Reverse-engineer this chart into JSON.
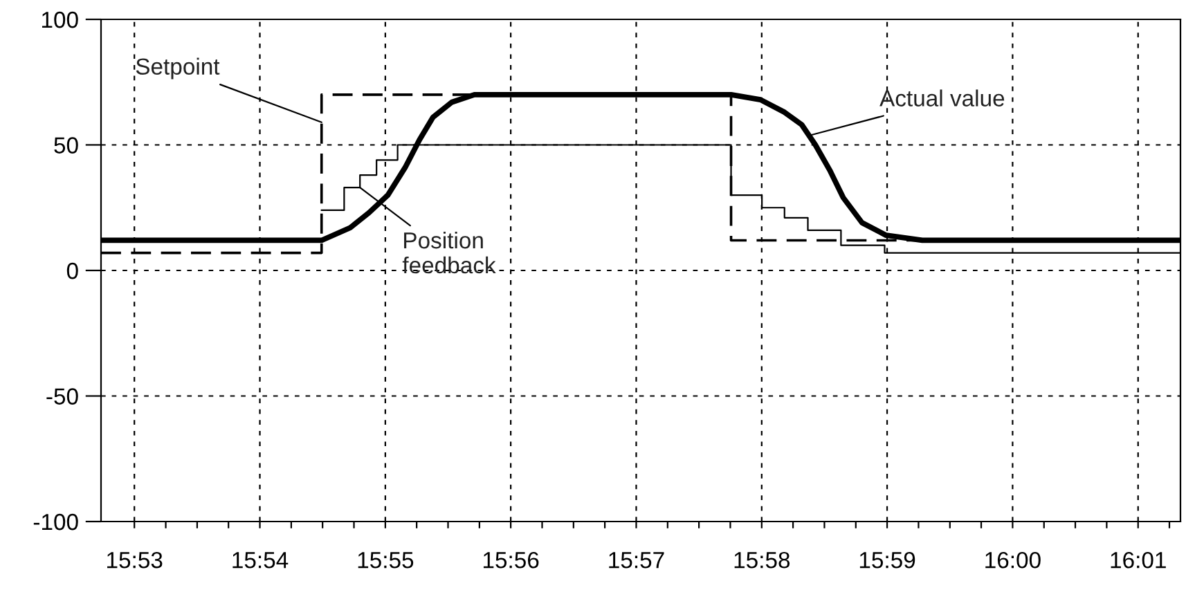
{
  "chart_data": {
    "type": "line",
    "grid": true,
    "legend": false,
    "marker": "none",
    "xlim": [
      15.8789,
      16.0223
    ],
    "ylim": [
      -100,
      100
    ],
    "yticks": [
      -100,
      -50,
      0,
      50,
      100
    ],
    "xticks": [
      {
        "value": 15.88333,
        "label": "15:53"
      },
      {
        "value": 15.8875,
        "label": null
      },
      {
        "value": 15.89167,
        "label": null
      },
      {
        "value": 15.89583,
        "label": null
      },
      {
        "value": 15.9,
        "label": "15:54"
      },
      {
        "value": 15.90417,
        "label": null
      },
      {
        "value": 15.90833,
        "label": null
      },
      {
        "value": 15.9125,
        "label": null
      },
      {
        "value": 15.91667,
        "label": "15:55"
      },
      {
        "value": 15.92083,
        "label": null
      },
      {
        "value": 15.925,
        "label": null
      },
      {
        "value": 15.92917,
        "label": null
      },
      {
        "value": 15.93333,
        "label": "15:56"
      },
      {
        "value": 15.9375,
        "label": null
      },
      {
        "value": 15.94167,
        "label": null
      },
      {
        "value": 15.94583,
        "label": null
      },
      {
        "value": 15.95,
        "label": "15:57"
      },
      {
        "value": 15.95417,
        "label": null
      },
      {
        "value": 15.95833,
        "label": null
      },
      {
        "value": 15.9625,
        "label": null
      },
      {
        "value": 15.96667,
        "label": "15:58"
      },
      {
        "value": 15.97083,
        "label": null
      },
      {
        "value": 15.975,
        "label": null
      },
      {
        "value": 15.97917,
        "label": null
      },
      {
        "value": 15.98333,
        "label": "15:59"
      },
      {
        "value": 15.9875,
        "label": null
      },
      {
        "value": 15.99167,
        "label": null
      },
      {
        "value": 15.99583,
        "label": null
      },
      {
        "value": 16.0,
        "label": "16:00"
      },
      {
        "value": 16.00417,
        "label": null
      },
      {
        "value": 16.00833,
        "label": null
      },
      {
        "value": 16.0125,
        "label": null
      },
      {
        "value": 16.01667,
        "label": "16:01"
      },
      {
        "value": 16.02083,
        "label": null
      }
    ],
    "series": [
      {
        "type": "step",
        "color": "#000000",
        "line_style": "dashed",
        "x": [
          15.8789,
          15.9082,
          15.9626,
          16.0223
        ],
        "values": [
          7,
          70,
          12,
          12
        ]
      },
      {
        "type": "step",
        "color": "#000000",
        "line_style": "solid",
        "x": [
          15.9082,
          15.9112,
          15.9133,
          15.9155,
          15.9183,
          15.9626,
          15.9667,
          15.9697,
          15.9728,
          15.9772,
          15.983,
          16.0223
        ],
        "values": [
          24,
          33,
          38,
          44,
          50,
          30,
          25,
          21,
          16,
          10,
          7,
          7
        ]
      },
      {
        "color": "#000000",
        "line_style": "solid",
        "x": [
          15.8789,
          15.9082,
          15.912,
          15.9145,
          15.917,
          15.9193,
          15.9212,
          15.923,
          15.9255,
          15.9285,
          15.9317,
          15.9626,
          15.9665,
          15.9697,
          15.972,
          15.9738,
          15.9757,
          15.9775,
          15.98,
          15.9832,
          15.988,
          16.0223
        ],
        "values": [
          12,
          12,
          17,
          23,
          30,
          41,
          52,
          61,
          67,
          70,
          70,
          70,
          68,
          63,
          58,
          50,
          40,
          29,
          19,
          14,
          12,
          12
        ]
      }
    ],
    "annotations": [
      {
        "text": "Setpoint",
        "x": 15.9082,
        "y": 59
      },
      {
        "text": "Position\nfeedback",
        "x": 15.9133,
        "y": 33
      },
      {
        "text": "Actual value",
        "x": 15.9733,
        "y": 54
      }
    ]
  }
}
